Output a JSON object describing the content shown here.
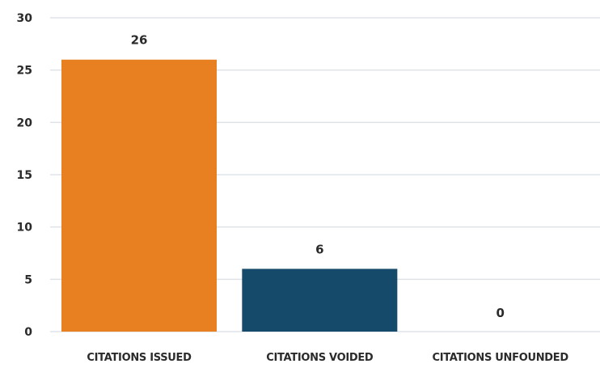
{
  "chart_data": {
    "type": "bar",
    "categories": [
      "CITATIONS ISSUED",
      "CITATIONS VOIDED",
      "CITATIONS UNFOUNDED"
    ],
    "values": [
      26,
      6,
      0
    ],
    "data_labels": [
      "26",
      "6",
      "0"
    ],
    "colors": [
      "#e88022",
      "#154a6b",
      "#154a6b"
    ],
    "title": "",
    "xlabel": "",
    "ylabel": "",
    "ylim": [
      0,
      30
    ],
    "yticks": [
      0,
      5,
      10,
      15,
      20,
      25,
      30
    ],
    "ytick_labels": [
      "0",
      "5",
      "10",
      "15",
      "20",
      "25",
      "30"
    ],
    "grid": true,
    "legend": "none"
  }
}
